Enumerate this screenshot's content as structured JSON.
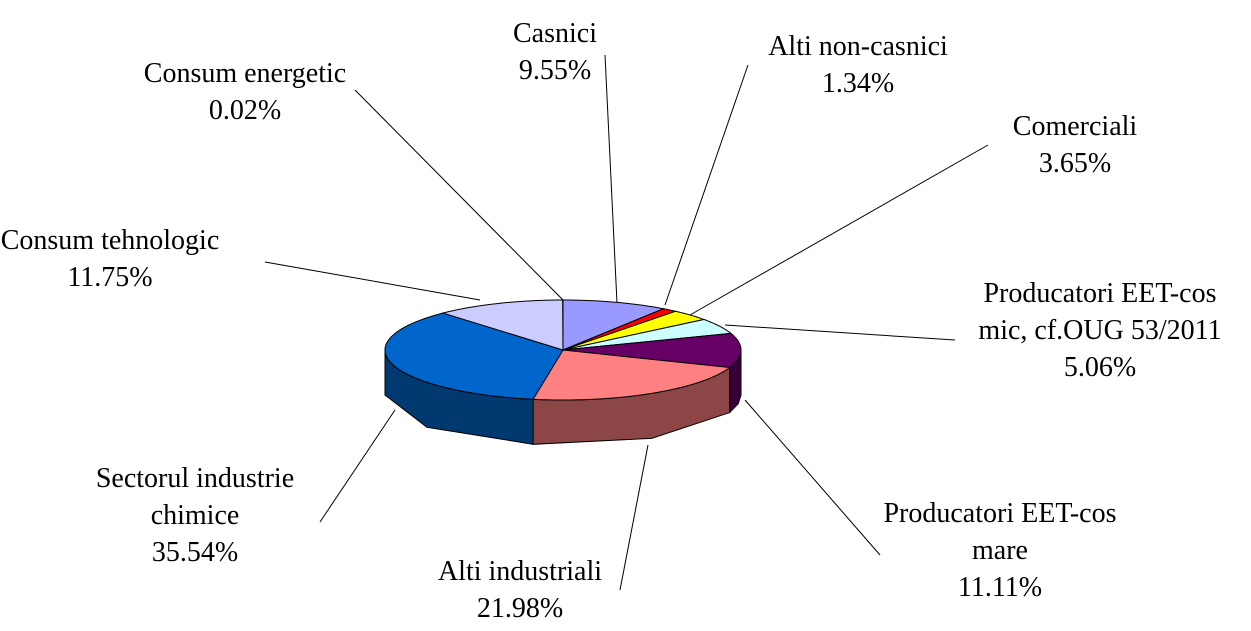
{
  "chart_data": {
    "type": "pie3d",
    "categories": [
      "Casnici",
      "Alti non-casnici",
      "Comerciali",
      "Producatori EET-cos mic, cf.OUG 53/2011",
      "Producatori EET-cos mare",
      "Alti industriali",
      "Sectorul industrie chimice",
      "Consum tehnologic",
      "Consum energetic"
    ],
    "values": [
      9.55,
      1.34,
      3.65,
      5.06,
      11.11,
      21.98,
      35.54,
      11.75,
      0.02
    ],
    "value_labels": [
      "9.55%",
      "1.34%",
      "3.65%",
      "5.06%",
      "11.11%",
      "21.98%",
      "35.54%",
      "11.75%",
      "0.02%"
    ],
    "colors": [
      "#9999ff",
      "#ff0000",
      "#ffff00",
      "#ccffff",
      "#660066",
      "#ff8080",
      "#0066cc",
      "#ccccff",
      "#ffffff"
    ]
  }
}
